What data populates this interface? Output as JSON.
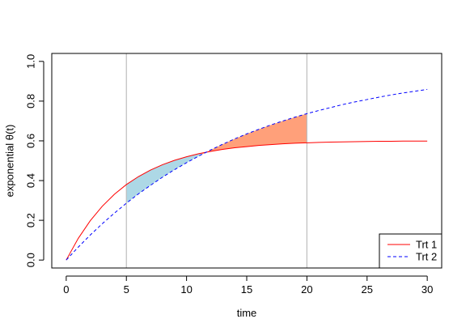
{
  "chart_data": {
    "type": "line",
    "title": "",
    "xlabel": "time",
    "ylabel": "exponential θ(t)",
    "xlim": [
      -1.2,
      31.2
    ],
    "ylim": [
      -0.04,
      1.04
    ],
    "xticks": [
      0,
      5,
      10,
      15,
      20,
      25,
      30
    ],
    "xtick_labels": [
      "0",
      "5",
      "10",
      "15",
      "20",
      "25",
      "30"
    ],
    "yticks": [
      0.0,
      0.2,
      0.4,
      0.6,
      0.8,
      1.0
    ],
    "ytick_labels": [
      "0.0",
      "0.2",
      "0.4",
      "0.6",
      "0.8",
      "1.0"
    ],
    "vlines": [
      5,
      20
    ],
    "vline_color": "#bebebe",
    "grid": false,
    "legend_position": "bottom-right",
    "series": [
      {
        "name": "Trt 1",
        "color": "#ff0000",
        "style": "solid",
        "x": [
          0,
          1,
          2,
          3,
          4,
          5,
          6,
          7,
          8,
          9,
          10,
          11,
          12,
          13,
          14,
          15,
          16,
          17,
          18,
          19,
          20,
          21,
          22,
          23,
          24,
          25,
          26,
          27,
          28,
          29,
          30
        ],
        "y": [
          0.0,
          0.109,
          0.198,
          0.271,
          0.331,
          0.38,
          0.42,
          0.453,
          0.48,
          0.502,
          0.52,
          0.535,
          0.547,
          0.557,
          0.565,
          0.571,
          0.577,
          0.581,
          0.585,
          0.588,
          0.59,
          0.592,
          0.594,
          0.595,
          0.596,
          0.597,
          0.598,
          0.598,
          0.599,
          0.599,
          0.599
        ]
      },
      {
        "name": "Trt 2",
        "color": "#0000ff",
        "style": "dashed",
        "x": [
          0,
          1,
          2,
          3,
          4,
          5,
          6,
          7,
          8,
          9,
          10,
          11,
          12,
          13,
          14,
          15,
          16,
          17,
          18,
          19,
          20,
          21,
          22,
          23,
          24,
          25,
          26,
          27,
          28,
          29,
          30
        ],
        "y": [
          0.0,
          0.065,
          0.126,
          0.183,
          0.236,
          0.286,
          0.333,
          0.376,
          0.417,
          0.455,
          0.49,
          0.523,
          0.554,
          0.583,
          0.61,
          0.635,
          0.658,
          0.68,
          0.7,
          0.719,
          0.737,
          0.753,
          0.768,
          0.783,
          0.796,
          0.808,
          0.82,
          0.831,
          0.841,
          0.85,
          0.859
        ]
      }
    ],
    "shaded_regions": [
      {
        "x_range": [
          5,
          11.3
        ],
        "color": "#add8e6",
        "between": "Trt 1 above Trt 2"
      },
      {
        "x_range": [
          11.3,
          20
        ],
        "color": "#ffa07a",
        "between": "Trt 2 above Trt 1"
      }
    ],
    "legend": {
      "entries": [
        {
          "label": "Trt 1",
          "color": "#ff0000",
          "style": "solid"
        },
        {
          "label": "Trt 2",
          "color": "#0000ff",
          "style": "dashed"
        }
      ]
    }
  }
}
